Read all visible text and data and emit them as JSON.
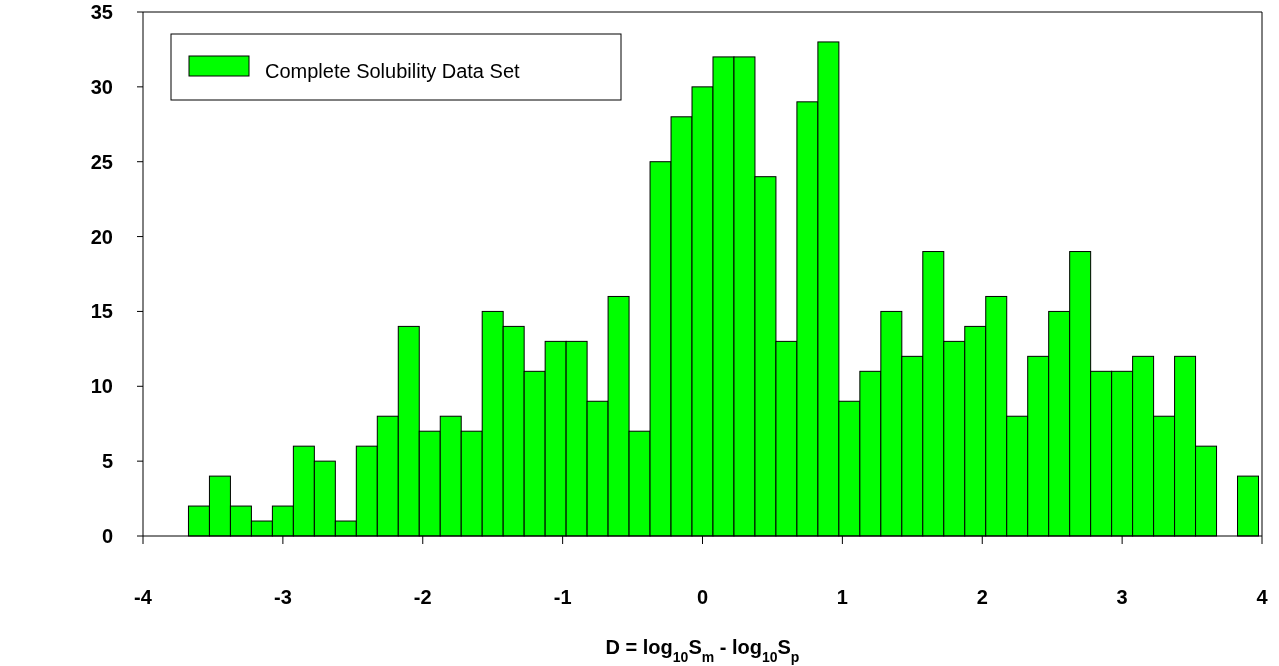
{
  "chart_data": {
    "type": "histogram",
    "xlabel": "D = log$_{10}$S$_{m}$ - log$_{10}$S$_{p}$",
    "bins": [
      -3.675,
      -3.525,
      -3.375,
      -3.225,
      -3.075,
      -2.925,
      -2.775,
      -2.625,
      -2.475,
      -2.325,
      -2.175,
      -2.025,
      -1.875,
      -1.725,
      -1.575,
      -1.425,
      -1.275,
      -1.125,
      -0.975,
      -0.825,
      -0.675,
      -0.525,
      -0.375,
      -0.225,
      -0.075,
      0.075,
      0.225,
      0.375,
      0.525,
      0.675,
      0.825,
      0.975,
      1.125,
      1.275,
      1.425,
      1.575,
      1.725,
      1.875,
      2.025,
      2.175,
      2.325,
      2.475,
      2.625,
      2.775,
      2.925,
      3.075,
      3.225,
      3.375,
      3.525,
      3.675,
      3.825,
      3.975
    ],
    "series": [
      {
        "name": "Complete Solubility Data Set",
        "color": "#00ff00",
        "values": [
          2,
          4,
          2,
          1,
          2,
          6,
          5,
          1,
          6,
          8,
          14,
          7,
          8,
          7,
          15,
          14,
          11,
          13,
          13,
          9,
          16,
          7,
          25,
          28,
          30,
          32,
          32,
          24,
          13,
          29,
          33,
          9,
          11,
          15,
          12,
          19,
          13,
          14,
          16,
          8,
          12,
          15,
          19,
          11,
          11,
          12,
          8,
          12,
          6,
          0,
          4
        ]
      }
    ],
    "xlim": [
      -4,
      4
    ],
    "xticks": [
      -4,
      -3,
      -2,
      -1,
      0,
      1,
      2,
      3,
      4
    ],
    "ylim": [
      0,
      35
    ],
    "yticks": [
      0,
      5,
      10,
      15,
      20,
      25,
      30,
      35
    ],
    "legend": "top left",
    "grid": false
  }
}
